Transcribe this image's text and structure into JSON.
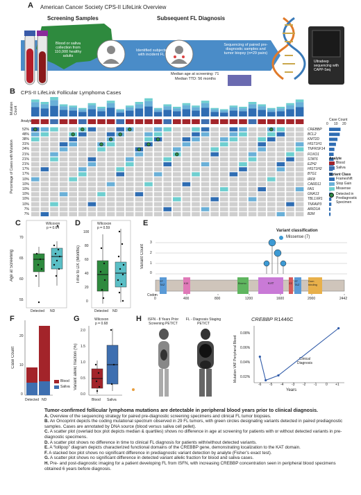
{
  "panelA": {
    "letter": "A",
    "title": "American Cancer Society CPS-II LifeLink Overview",
    "screening_title": "Screening Samples",
    "diagnosis_title": "Subsequent FL Diagnosis",
    "blood_text": "Blood or saliva collection from 110,000 healthy adults",
    "identified_text": "Identified subjects with incident FL",
    "sequencing_text": "Sequencing of paired pre-diagnostic samples and tumor biopsy (n=29 pairs)",
    "median_age": "Median age at screening: 71",
    "median_ttd": "Median TTD: 56 months",
    "capp_text": "Ultradeep sequencing with CAPP-Seq"
  },
  "panelB": {
    "letter": "B",
    "title": "CPS-II LifeLink Follicular Lymphoma Cases",
    "ylabel_top": "Mutation Count",
    "ylabel_main": "Percentage of Cases with Mutation",
    "analyte_label": "Analyte",
    "case_count_title": "Case Count",
    "case_count_ticks": [
      "0",
      "10",
      "20"
    ],
    "genes": [
      "CREBBP",
      "BCL2",
      "KMT2D",
      "HIST1H1",
      "TNFRSF14",
      "FOXO1",
      "STAT6",
      "EZH2",
      "HIST1H2",
      "BTG1",
      "IRF8",
      "CARD11",
      "FAS",
      "GNA13",
      "TBL1XR1",
      "TNFAIP3",
      "ARID1A",
      "B2M"
    ],
    "percents": [
      "52%",
      "48%",
      "38%",
      "31%",
      "24%",
      "21%",
      "21%",
      "21%",
      "17%",
      "17%",
      "10%",
      "10%",
      "10%",
      "10%",
      "10%",
      "10%",
      "7%",
      "7%"
    ],
    "case_counts": [
      15,
      14,
      11,
      9,
      7,
      6,
      6,
      6,
      5,
      5,
      3,
      3,
      3,
      3,
      3,
      3,
      2,
      2
    ],
    "mutation_counts": [
      14,
      12,
      16,
      10,
      9,
      7,
      11,
      8,
      13,
      6,
      9,
      12,
      15,
      7,
      10,
      8,
      11,
      9,
      13,
      7,
      6,
      9,
      8,
      12,
      10,
      7,
      8,
      11,
      14
    ],
    "analyte_sequence": [
      "Blood",
      "Blood",
      "Saliva",
      "Blood",
      "Blood",
      "Saliva",
      "Blood",
      "Blood",
      "Blood",
      "Saliva",
      "Blood",
      "Blood",
      "Blood",
      "Blood",
      "Saliva",
      "Blood",
      "Blood",
      "Blood",
      "Saliva",
      "Blood",
      "Blood",
      "Blood",
      "Blood",
      "Saliva",
      "Blood",
      "Blood",
      "Blood",
      "Blood",
      "Blood"
    ],
    "legend_analyte_title": "Analyte",
    "legend_analyte": [
      "Blood",
      "Saliva"
    ],
    "legend_variant_title": "Variant Class",
    "legend_variant": [
      "Frameshift",
      "Stop Gain",
      "Missense",
      "Detected in Prediagnostic Specimen"
    ],
    "colors": {
      "blood": "#a3242a",
      "saliva": "#3e6fb0",
      "frameshift": "#2f6db3",
      "stopgain": "#6ab0d8",
      "missense": "#6ecfd0",
      "detected": "#2d8c46",
      "empty": "#cfcfcf"
    }
  },
  "panelC": {
    "letter": "C",
    "ylabel": "Age at Screening",
    "stat": "Wilcoxon",
    "pval": "p = 0.64",
    "yticks": [
      "55",
      "60",
      "65",
      "70"
    ],
    "groups": [
      "Detected",
      "ND"
    ]
  },
  "panelD": {
    "letter": "D",
    "ylabel": "Time to DX (Months)",
    "stat": "Wilcoxon",
    "pval": "p = 0.59",
    "yticks": [
      "0",
      "20",
      "40",
      "60",
      "80",
      "100"
    ],
    "groups": [
      "Detected",
      "ND"
    ]
  },
  "panelE": {
    "letter": "E",
    "ylabel": "Variant Count",
    "legend_title": "Variant classification",
    "legend_item": "Missense (7)",
    "yticks": [
      "0",
      "1",
      "2",
      "3"
    ],
    "codon_label": "Codon",
    "codon_ticks": [
      "0",
      "400",
      "800",
      "1200",
      "1600",
      "2000",
      "2442"
    ],
    "domains": [
      "ZF TAZ",
      "KIX",
      "Bromo",
      "KAT",
      "ZZ",
      "ZF TAZ",
      "Dom binding"
    ]
  },
  "panelF": {
    "letter": "F",
    "ylabel": "Case Count",
    "yticks": [
      "0",
      "10",
      "20"
    ],
    "groups": [
      "Detected",
      "ND"
    ],
    "legend": [
      "Blood",
      "Saliva"
    ]
  },
  "panelG": {
    "letter": "G",
    "ylabel": "Variant allelic fraction (%)",
    "stat": "Wilcoxon",
    "pval": "p = 0.68",
    "yticks": [
      "0.0",
      "0.5",
      "1.0",
      "1.5",
      "2.0"
    ],
    "groups": [
      "Blood",
      "Saliva"
    ]
  },
  "panelH": {
    "letter": "H",
    "pet1_title": "ISFN - 8 Years Prior Screening PET/CT",
    "pet2_title": "FL - Diagnosis Staging PET/CT",
    "plot_gene": "CREBBP",
    "plot_variant": "R1446C",
    "ylabel": "Mutation VAF Peripheral Blood",
    "xlabel": "Years",
    "annotation": "Clinical Diagnosis",
    "yticks": [
      "0.02%",
      "0.04%",
      "0.06%",
      "0.08%"
    ],
    "xticks": [
      "-6",
      "-5",
      "-4",
      "-3",
      "-2",
      "-1",
      "0",
      "+1"
    ]
  },
  "chart_data": [
    {
      "type": "bar",
      "title": "Mutation Count",
      "categories": [
        "1",
        "2",
        "3",
        "4",
        "5",
        "6",
        "7",
        "8",
        "9",
        "10",
        "11",
        "12",
        "13",
        "14",
        "15",
        "16",
        "17",
        "18",
        "19",
        "20",
        "21",
        "22",
        "23",
        "24",
        "25",
        "26",
        "27",
        "28",
        "29"
      ],
      "values": [
        14,
        12,
        16,
        10,
        9,
        7,
        11,
        8,
        13,
        6,
        9,
        12,
        15,
        7,
        10,
        8,
        11,
        9,
        13,
        7,
        6,
        9,
        8,
        12,
        10,
        7,
        8,
        11,
        14
      ]
    },
    {
      "type": "line",
      "title": "CREBBP R1446C",
      "xlabel": "Years",
      "ylabel": "Mutation VAF Peripheral Blood",
      "x": [
        -5.8,
        -5.3,
        -4.2,
        1
      ],
      "y": [
        0.047,
        0.018,
        0.024,
        0.082
      ],
      "xlim": [
        -6.3,
        1.5
      ],
      "ylim": [
        0.015,
        0.085
      ]
    }
  ],
  "caption": {
    "title": "Tumor-confirmed follicular lymphoma mutations are detectable in peripheral blood years prior to clinical diagnosis.",
    "lines": [
      {
        "k": "A.",
        "t": "Overview of the sequencing strategy for paired pre-diagnostic screening specimens and clinical FL tumor biopsies."
      },
      {
        "k": "B.",
        "t": "An Oncoprint depicts the coding mutational spectrum observed in 29 FL tumors, with green circles designating variants detected in paired prediagnostic samples. Cases are annotated by DNA source (blood versus saliva cell pellet)."
      },
      {
        "k": "C.",
        "t": "A scatter plot (overlaid box plot depicts median & quartiles) shows no difference in age at screening for patients with or without detected variants in pre-diagnostic specimens."
      },
      {
        "k": "D.",
        "t": "A scatter plot shows no difference in time to clinical FL diagnosis for patients with/without detected variants."
      },
      {
        "k": "E.",
        "t": "A “lollipop” diagram depicts characterized functional domains of the CREBBP gene, demonstrating localization to the KAT domain."
      },
      {
        "k": "F.",
        "t": "A stacked box plot shows no significant difference in prediagnostic variant detection by analyte (Fisher’s exact test)."
      },
      {
        "k": "G.",
        "t": "A scatter plot shows no significant difference in detected variant allelic fraction for blood and saliva cases."
      },
      {
        "k": "H.",
        "t": "Pre- and post-diagnostic imaging for a patient developing FL from ISFN, with increasing CREBBP concentration seen in peripheral blood specimens obtained 6 years before diagnosis."
      }
    ]
  }
}
